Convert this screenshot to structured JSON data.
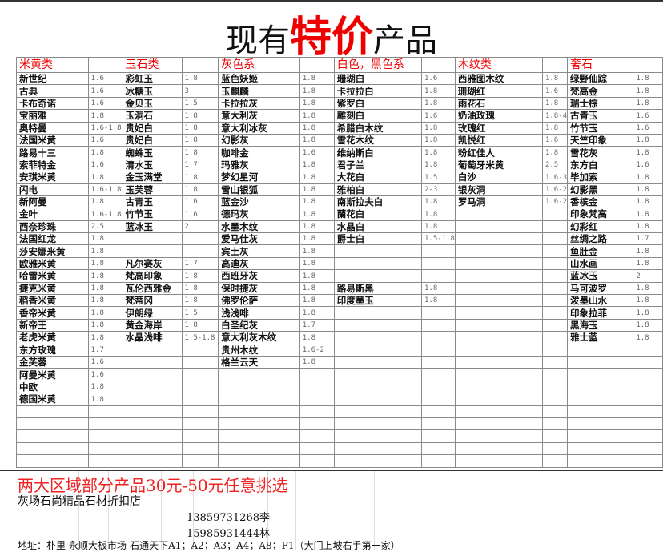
{
  "title": {
    "prefix": "现有",
    "highlight": "特价",
    "suffix": "产品"
  },
  "colors": {
    "accent": "#e00000",
    "grid": "#8a8a8a",
    "value_text": "#666666"
  },
  "columns": [
    {
      "header": "米黄类",
      "items": [
        {
          "name": "新世纪",
          "value": "1.6"
        },
        {
          "name": "古典",
          "value": "1.6"
        },
        {
          "name": "卡布奇诺",
          "value": "1.6"
        },
        {
          "name": "宝丽雅",
          "value": "1.8"
        },
        {
          "name": "奥特曼",
          "value": "1.6-1.8"
        },
        {
          "name": "法国米黄",
          "value": "1.6"
        },
        {
          "name": "路易十三",
          "value": "1.8"
        },
        {
          "name": "索菲特金",
          "value": "1.6"
        },
        {
          "name": "安琪米黄",
          "value": "1.8"
        },
        {
          "name": "闪电",
          "value": "1.6-1.8"
        },
        {
          "name": "新阿曼",
          "value": "1.8"
        },
        {
          "name": "金叶",
          "value": "1.6-1.8"
        },
        {
          "name": "西奈珍珠",
          "value": "2.5"
        },
        {
          "name": "法国红龙",
          "value": "1.8"
        },
        {
          "name": "莎安娜米黄",
          "value": "1.8"
        },
        {
          "name": "欧雅米黄",
          "value": "1.8"
        },
        {
          "name": "哈雷米黄",
          "value": "1.8"
        },
        {
          "name": "捷克米黄",
          "value": "1.8"
        },
        {
          "name": "稻香米黄",
          "value": "1.8"
        },
        {
          "name": "香帝米黄",
          "value": "1.8"
        },
        {
          "name": "新帝王",
          "value": "1.8"
        },
        {
          "name": "老虎米黄",
          "value": "1.8"
        },
        {
          "name": "东方玫瑰",
          "value": "1.7"
        },
        {
          "name": "金芙蓉",
          "value": "1.6"
        },
        {
          "name": "阿曼米黄",
          "value": "1.6"
        },
        {
          "name": "中欧",
          "value": "1.8"
        },
        {
          "name": "德国米黄",
          "value": "1.8"
        }
      ]
    },
    {
      "header": "玉石类",
      "items": [
        {
          "name": "彩虹玉",
          "value": "1.8"
        },
        {
          "name": "冰糖玉",
          "value": "3"
        },
        {
          "name": "金贝玉",
          "value": "1.5"
        },
        {
          "name": "玉洞石",
          "value": "1.8"
        },
        {
          "name": "贵妃白",
          "value": "1.8"
        },
        {
          "name": "贵妃白",
          "value": "1.8"
        },
        {
          "name": "蜘蛛玉",
          "value": "1.8"
        },
        {
          "name": "清水玉",
          "value": "1.7"
        },
        {
          "name": "金玉满堂",
          "value": "1.8"
        },
        {
          "name": "玉芙蓉",
          "value": "1.8"
        },
        {
          "name": "古青玉",
          "value": "1.6"
        },
        {
          "name": "竹节玉",
          "value": "1.6"
        },
        {
          "name": "蓝冰玉",
          "value": "2"
        },
        {
          "name": "",
          "value": ""
        },
        {
          "name": "",
          "value": ""
        },
        {
          "name": "凡尔赛灰",
          "value": "1.7"
        },
        {
          "name": "梵高印象",
          "value": "1.8"
        },
        {
          "name": "瓦伦西雅金",
          "value": "1.8"
        },
        {
          "name": "梵蒂冈",
          "value": "1.8"
        },
        {
          "name": "伊朗绿",
          "value": "1.5"
        },
        {
          "name": "黄金海岸",
          "value": "1.8"
        },
        {
          "name": "水晶浅啡",
          "value": "1.5-1.8"
        }
      ]
    },
    {
      "header": "灰色系",
      "items": [
        {
          "name": "蓝色妖姬",
          "value": "1.8"
        },
        {
          "name": "玉麒麟",
          "value": "1.8"
        },
        {
          "name": "卡拉拉灰",
          "value": "1.8"
        },
        {
          "name": "意大利灰",
          "value": "1.8"
        },
        {
          "name": "意大利冰灰",
          "value": "1.8"
        },
        {
          "name": "幻影灰",
          "value": "1.8"
        },
        {
          "name": "咖啡金",
          "value": "1.6"
        },
        {
          "name": "玛雅灰",
          "value": "1.8"
        },
        {
          "name": "梦幻星河",
          "value": "1.8"
        },
        {
          "name": "雪山银狐",
          "value": "1.8"
        },
        {
          "name": "蓝金沙",
          "value": "1.8"
        },
        {
          "name": "德玛灰",
          "value": "1.8"
        },
        {
          "name": "水墨木纹",
          "value": "1.8"
        },
        {
          "name": "爱马仕灰",
          "value": "1.8"
        },
        {
          "name": "宾士灰",
          "value": "1.8"
        },
        {
          "name": "高迪灰",
          "value": "1.8"
        },
        {
          "name": "西班牙灰",
          "value": "1.8"
        },
        {
          "name": "保时捷灰",
          "value": "1.8"
        },
        {
          "name": "佛罗伦萨",
          "value": "1.8"
        },
        {
          "name": "浅浅啡",
          "value": "1.8"
        },
        {
          "name": "白圣纪灰",
          "value": "1.7"
        },
        {
          "name": "意大利灰木纹",
          "value": "1.8"
        },
        {
          "name": "贵州木纹",
          "value": "1.6-2"
        },
        {
          "name": "格兰云天",
          "value": "1.8"
        }
      ]
    },
    {
      "header": "白色，黑色系",
      "items": [
        {
          "name": "珊瑚白",
          "value": "1.6"
        },
        {
          "name": "卡拉拉白",
          "value": "1.8"
        },
        {
          "name": "紫罗白",
          "value": "1.8"
        },
        {
          "name": "雕刻白",
          "value": "1.6"
        },
        {
          "name": "希腊白木纹",
          "value": "1.8"
        },
        {
          "name": "雪花木纹",
          "value": "1.8"
        },
        {
          "name": "维纳斯白",
          "value": "1.8"
        },
        {
          "name": "君子兰",
          "value": "1.8"
        },
        {
          "name": "大花白",
          "value": "1.5"
        },
        {
          "name": "雅柏白",
          "value": "2-3"
        },
        {
          "name": "南斯拉夫白",
          "value": "1.8"
        },
        {
          "name": "蘭花白",
          "value": "1.8"
        },
        {
          "name": "水晶白",
          "value": "1.8"
        },
        {
          "name": "爵士白",
          "value": "1.5-1.8"
        },
        {
          "name": "",
          "value": ""
        },
        {
          "name": "",
          "value": ""
        },
        {
          "name": "",
          "value": ""
        },
        {
          "name": "路易斯黑",
          "value": "1.8"
        },
        {
          "name": "印度墨玉",
          "value": "1.8"
        }
      ]
    },
    {
      "header": "木纹类",
      "items": [
        {
          "name": "西雅图木纹",
          "value": "1.8"
        },
        {
          "name": "珊瑚红",
          "value": "1.6"
        },
        {
          "name": "雨花石",
          "value": "1.8"
        },
        {
          "name": "奶油玫瑰",
          "value": "1.8-4"
        },
        {
          "name": "玫瑰红",
          "value": "1.8"
        },
        {
          "name": "凯悦红",
          "value": "1.6"
        },
        {
          "name": "粉红佳人",
          "value": "1.8"
        },
        {
          "name": "葡萄牙米黄",
          "value": "2.5"
        },
        {
          "name": "白沙",
          "value": "1.6-3"
        },
        {
          "name": "银灰洞",
          "value": "1.6-2"
        },
        {
          "name": "罗马洞",
          "value": "1.6-2"
        }
      ]
    },
    {
      "header": "奢石",
      "items": [
        {
          "name": "绿野仙踪",
          "value": "1.8"
        },
        {
          "name": "梵高金",
          "value": "1.8"
        },
        {
          "name": "瑞士棕",
          "value": "1.8"
        },
        {
          "name": "古青玉",
          "value": "1.6"
        },
        {
          "name": "竹节玉",
          "value": "1.6"
        },
        {
          "name": "天竺印象",
          "value": "1.8"
        },
        {
          "name": "雪花灰",
          "value": "1.8"
        },
        {
          "name": "东方白",
          "value": "1.6"
        },
        {
          "name": "毕加索",
          "value": "1.8"
        },
        {
          "name": "幻影黑",
          "value": "1.8"
        },
        {
          "name": "香槟金",
          "value": "1.8"
        },
        {
          "name": "印象梵高",
          "value": "1.8"
        },
        {
          "name": "幻彩红",
          "value": "1.8"
        },
        {
          "name": "丝绸之路",
          "value": "1.7"
        },
        {
          "name": "鱼肚金",
          "value": "1.8"
        },
        {
          "name": "山水画",
          "value": "1.8"
        },
        {
          "name": "蓝冰玉",
          "value": "2"
        },
        {
          "name": "马可波罗",
          "value": "1.8"
        },
        {
          "name": "泼墨山水",
          "value": "1.8"
        },
        {
          "name": "印象拉菲",
          "value": "1.8"
        },
        {
          "name": "黑海玉",
          "value": "1.8"
        },
        {
          "name": "雅士蓝",
          "value": "1.8"
        }
      ]
    }
  ],
  "footer": {
    "promo": "两大区域部分产品30元-50元任意挑选",
    "shop": "灰场石尚精品石材折扣店",
    "phone1": "13859731268李",
    "phone2": "15985931444林",
    "address": "地址：朴里-永顺大板市场-石通天下A1；A2；A3；A4；A8；F1（大门上坡右手第一家）"
  }
}
